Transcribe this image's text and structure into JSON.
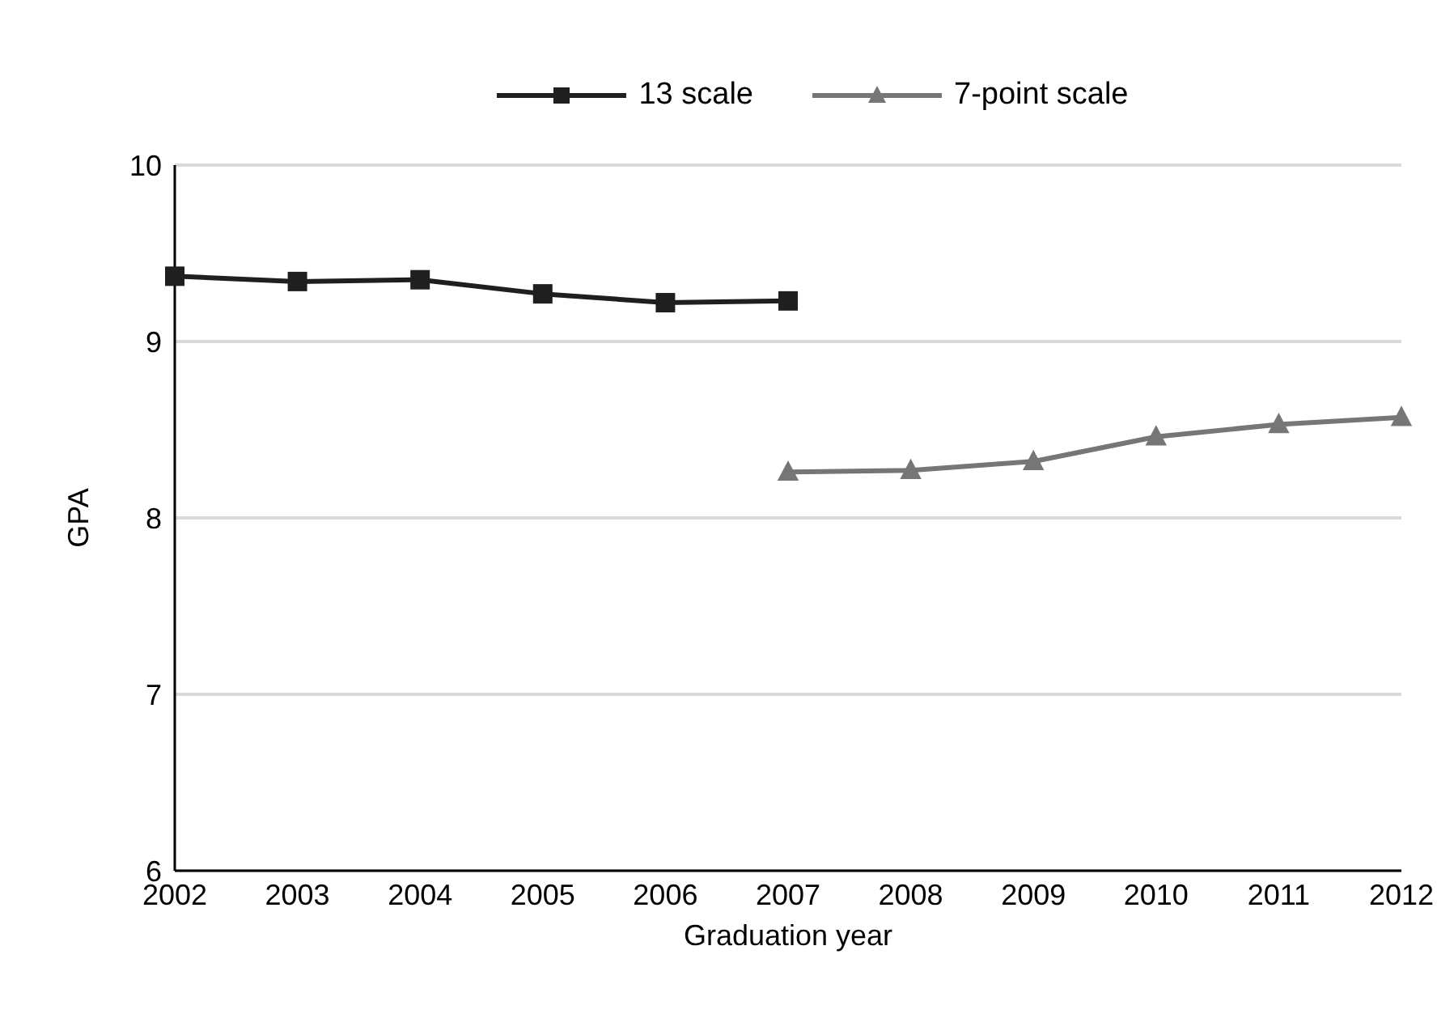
{
  "chart_data": {
    "type": "line",
    "xlabel": "Graduation year",
    "ylabel": "GPA",
    "categories": [
      "2002",
      "2003",
      "2004",
      "2005",
      "2006",
      "2007",
      "2008",
      "2009",
      "2010",
      "2011",
      "2012"
    ],
    "series": [
      {
        "name": "13 scale",
        "color": "#1f1f1f",
        "marker": "square",
        "values": [
          9.37,
          9.34,
          9.35,
          9.27,
          9.22,
          9.23,
          null,
          null,
          null,
          null,
          null
        ]
      },
      {
        "name": "7-point scale",
        "color": "#767676",
        "marker": "triangle",
        "values": [
          null,
          null,
          null,
          null,
          null,
          8.26,
          8.27,
          8.32,
          8.46,
          8.53,
          8.57
        ]
      }
    ],
    "ylim": [
      6,
      10
    ],
    "yticks": [
      6,
      7,
      8,
      9,
      10
    ],
    "grid": "y",
    "legend": "top",
    "line_style": "solid"
  }
}
